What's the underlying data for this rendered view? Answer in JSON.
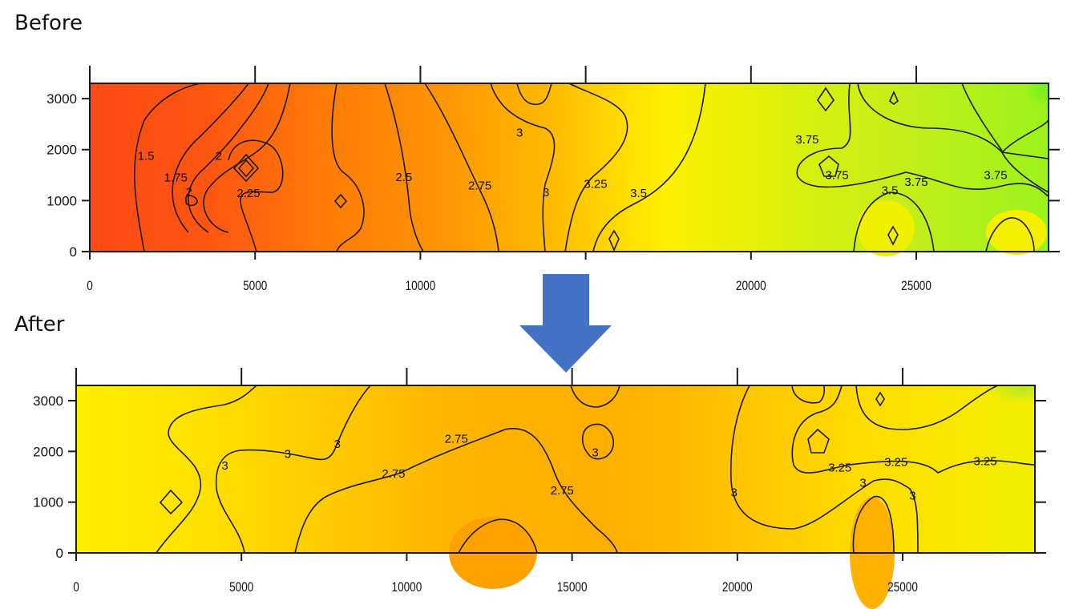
{
  "panels": {
    "before_label": "Before",
    "after_label": "After"
  },
  "colors": {
    "arrow": "#4472c4"
  },
  "chart_data": [
    {
      "type": "heatmap",
      "subtype": "contour",
      "panel": "Before",
      "xlim": [
        0,
        29000
      ],
      "ylim": [
        0,
        3300
      ],
      "x_ticks": [
        0,
        5000,
        10000,
        15000,
        20000,
        25000
      ],
      "x_tick_labels": [
        "0",
        "5000",
        "10000",
        "",
        "20000",
        "25000"
      ],
      "y_ticks": [
        0,
        1000,
        2000,
        3000
      ],
      "y_tick_labels": [
        "0",
        "1000",
        "2000",
        "3000"
      ],
      "grid": false,
      "colorscale": [
        {
          "value": 1.25,
          "color": "#ff4a14"
        },
        {
          "value": 2.0,
          "color": "#ff6a0c"
        },
        {
          "value": 2.5,
          "color": "#ff8a06"
        },
        {
          "value": 2.75,
          "color": "#ffae00"
        },
        {
          "value": 3.0,
          "color": "#ffc800"
        },
        {
          "value": 3.25,
          "color": "#ffe600"
        },
        {
          "value": 3.5,
          "color": "#f4f200"
        },
        {
          "value": 3.75,
          "color": "#c6f01a"
        },
        {
          "value": 4.0,
          "color": "#86f21e"
        }
      ],
      "contour_labels": [
        {
          "text": "1.5",
          "x": 1700,
          "y": 1880
        },
        {
          "text": "2",
          "x": 3900,
          "y": 1880
        },
        {
          "text": "1.75",
          "x": 2600,
          "y": 1450
        },
        {
          "text": "2",
          "x": 3000,
          "y": 1170
        },
        {
          "text": "2.25",
          "x": 4800,
          "y": 1150
        },
        {
          "text": "2.5",
          "x": 9500,
          "y": 1460
        },
        {
          "text": "2.75",
          "x": 11800,
          "y": 1300
        },
        {
          "text": "3",
          "x": 13000,
          "y": 2330
        },
        {
          "text": "3",
          "x": 13800,
          "y": 1160
        },
        {
          "text": "3.25",
          "x": 15300,
          "y": 1330
        },
        {
          "text": "3.5",
          "x": 16600,
          "y": 1150
        },
        {
          "text": "3.75",
          "x": 21700,
          "y": 2200
        },
        {
          "text": "3.75",
          "x": 22600,
          "y": 1500
        },
        {
          "text": "3.75",
          "x": 25000,
          "y": 1370
        },
        {
          "text": "3.75",
          "x": 27400,
          "y": 1500
        },
        {
          "text": "3.5",
          "x": 24200,
          "y": 1200
        }
      ]
    },
    {
      "type": "heatmap",
      "subtype": "contour",
      "panel": "After",
      "xlim": [
        0,
        29000
      ],
      "ylim": [
        0,
        3300
      ],
      "x_ticks": [
        0,
        5000,
        10000,
        15000,
        20000,
        25000
      ],
      "x_tick_labels": [
        "0",
        "5000",
        "10000",
        "15000",
        "20000",
        "25000"
      ],
      "y_ticks": [
        0,
        1000,
        2000,
        3000
      ],
      "y_tick_labels": [
        "0",
        "1000",
        "2000",
        "3000"
      ],
      "grid": false,
      "colorscale": [
        {
          "value": 2.5,
          "color": "#ffa100"
        },
        {
          "value": 2.75,
          "color": "#ffb000"
        },
        {
          "value": 3.0,
          "color": "#ffcf00"
        },
        {
          "value": 3.25,
          "color": "#ffe800"
        },
        {
          "value": 3.5,
          "color": "#f5f500"
        },
        {
          "value": 3.75,
          "color": "#d2f000"
        },
        {
          "value": 4.0,
          "color": "#b6ea22"
        }
      ],
      "contour_labels": [
        {
          "text": "3",
          "x": 4500,
          "y": 1720
        },
        {
          "text": "3",
          "x": 6400,
          "y": 1950
        },
        {
          "text": "3",
          "x": 7900,
          "y": 2150
        },
        {
          "text": "2.75",
          "x": 9600,
          "y": 1560
        },
        {
          "text": "2.75",
          "x": 11500,
          "y": 2250
        },
        {
          "text": "3",
          "x": 15700,
          "y": 1980
        },
        {
          "text": "2.75",
          "x": 14700,
          "y": 1230
        },
        {
          "text": "3",
          "x": 19900,
          "y": 1190
        },
        {
          "text": "3.25",
          "x": 23100,
          "y": 1680
        },
        {
          "text": "3.25",
          "x": 24800,
          "y": 1790
        },
        {
          "text": "3.25",
          "x": 27500,
          "y": 1810
        },
        {
          "text": "3",
          "x": 23800,
          "y": 1380
        },
        {
          "text": "3",
          "x": 25300,
          "y": 1130
        }
      ]
    }
  ]
}
